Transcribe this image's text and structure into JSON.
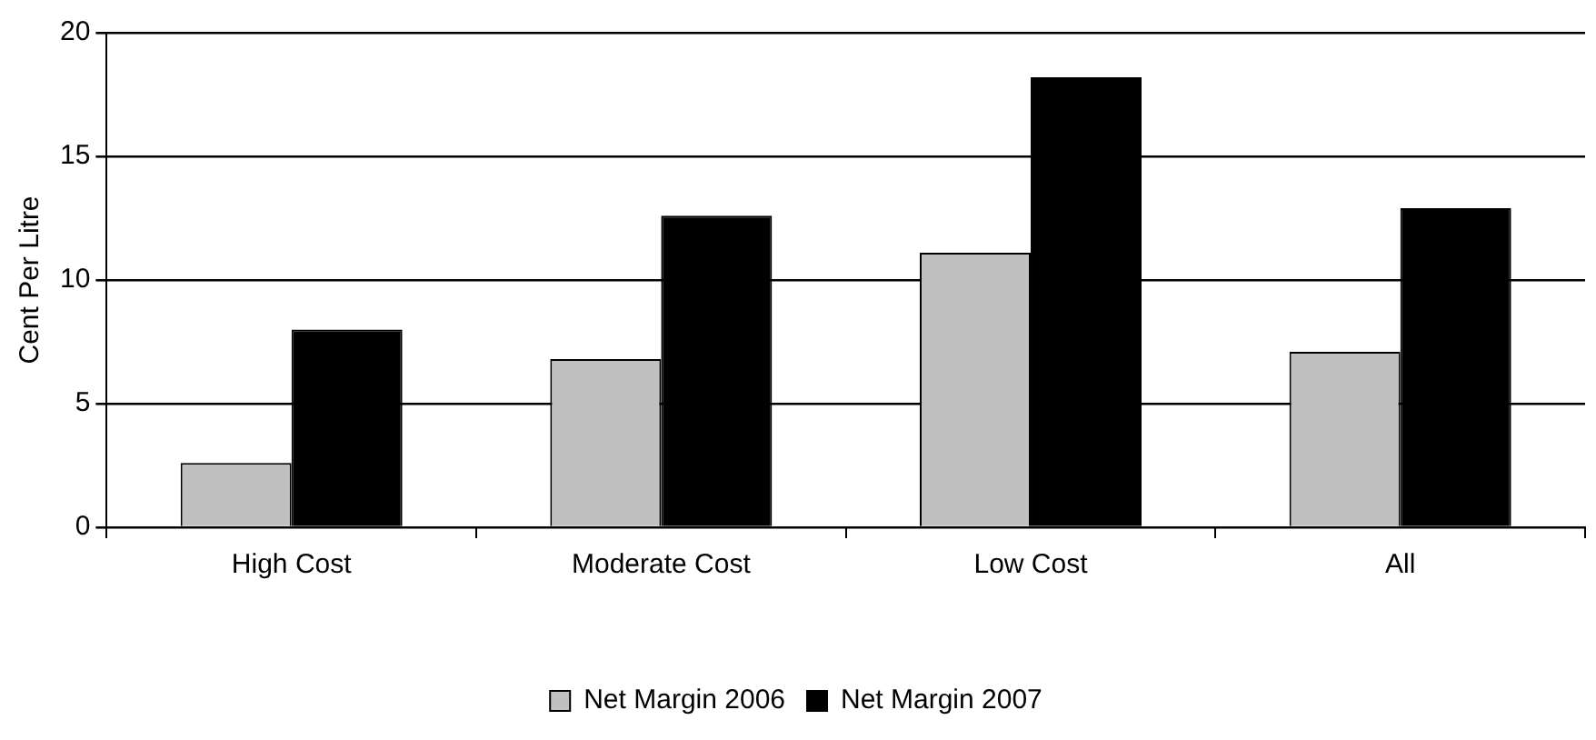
{
  "chart_data": {
    "type": "bar",
    "ylabel": "Cent Per Litre",
    "categories": [
      "High Cost",
      "Moderate Cost",
      "Low Cost",
      "All"
    ],
    "series": [
      {
        "name": "Net Margin 2006",
        "color": "#c0c0c0",
        "values": [
          2.6,
          6.8,
          11.1,
          7.1
        ]
      },
      {
        "name": "Net Margin 2007",
        "color": "#000000",
        "values": [
          8.0,
          12.6,
          18.2,
          12.9
        ]
      }
    ],
    "ylim": [
      0,
      20
    ],
    "yticks": [
      0,
      5,
      10,
      15,
      20
    ],
    "grid": "y",
    "legend": "bottom"
  }
}
